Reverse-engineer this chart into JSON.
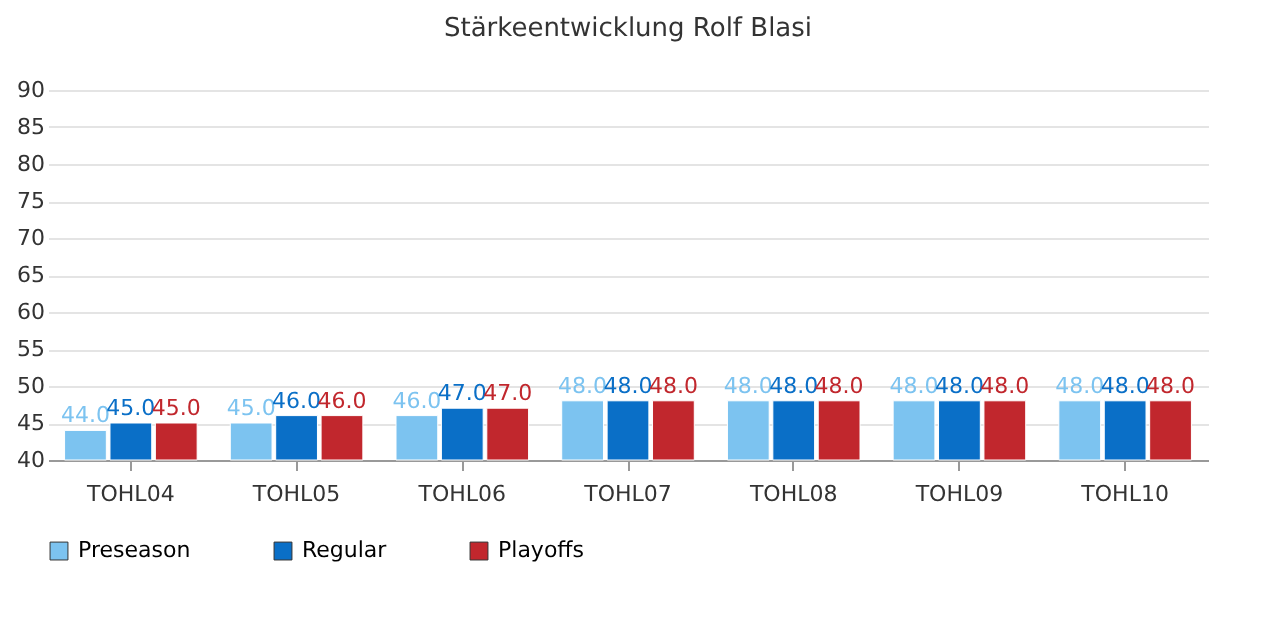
{
  "chart_data": {
    "type": "bar",
    "title": "Stärkeentwicklung Rolf Blasi",
    "categories": [
      "TOHL04",
      "TOHL05",
      "TOHL06",
      "TOHL07",
      "TOHL08",
      "TOHL09",
      "TOHL10"
    ],
    "series": [
      {
        "name": "Preseason",
        "color": "#7cc3f0",
        "values": [
          44,
          45,
          46,
          48,
          48,
          48,
          48
        ],
        "value_labels": [
          "44.0",
          "45.0",
          "46.0",
          "48.0",
          "48.0",
          "48.0",
          "48.0"
        ]
      },
      {
        "name": "Regular",
        "color": "#0a6fc7",
        "values": [
          45,
          46,
          47,
          48,
          48,
          48,
          48
        ],
        "value_labels": [
          "45.0",
          "46.0",
          "47.0",
          "48.0",
          "48.0",
          "48.0",
          "48.0"
        ]
      },
      {
        "name": "Playoffs",
        "color": "#c1272d",
        "values": [
          45,
          46,
          47,
          48,
          48,
          48,
          48
        ],
        "value_labels": [
          "45.0",
          "46.0",
          "47.0",
          "48.0",
          "48.0",
          "48.0",
          "48.0"
        ]
      }
    ],
    "ylim": [
      40,
      90
    ],
    "yticks": [
      40,
      45,
      50,
      55,
      60,
      65,
      70,
      75,
      80,
      85,
      90
    ],
    "grid": "y",
    "legend": "bottom"
  }
}
